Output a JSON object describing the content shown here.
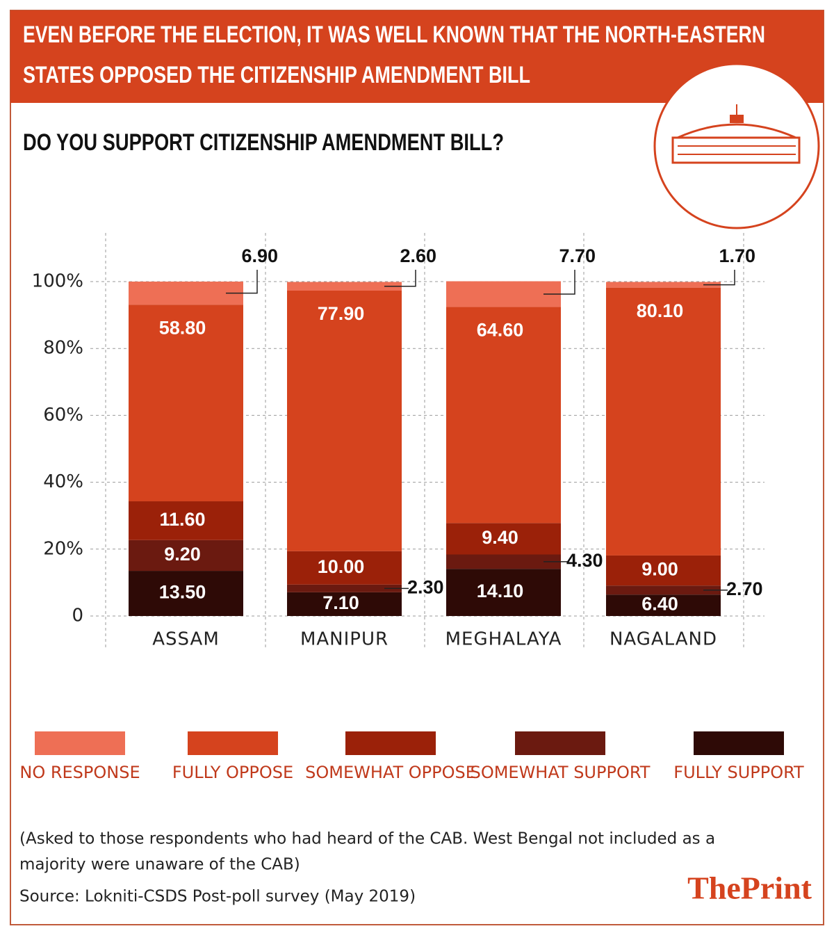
{
  "chart_data": {
    "type": "stacked-bar",
    "title": [
      "EVEN BEFORE THE ELECTION, IT WAS WELL KNOWN THAT THE NORTH-EASTERN",
      "STATES OPPOSED THE CITIZENSHIP AMENDMENT BILL"
    ],
    "subtitle": "DO YOU SUPPORT CITIZENSHIP AMENDMENT BILL?",
    "categories": [
      "ASSAM",
      "MANIPUR",
      "MEGHALAYA",
      "NAGALAND"
    ],
    "series": [
      {
        "name": "NO RESPONSE",
        "color": "#ee6f55",
        "values": [
          6.9,
          2.6,
          7.7,
          1.7
        ],
        "value_labels": [
          "6.90",
          "2.60",
          "7.70",
          "1.70"
        ]
      },
      {
        "name": "FULLY OPPOSE",
        "color": "#d5431e",
        "values": [
          58.8,
          77.9,
          64.6,
          80.1
        ],
        "value_labels": [
          "58.80",
          "77.90",
          "64.60",
          "80.10"
        ]
      },
      {
        "name": "SOMEWHAT OPPOSE",
        "color": "#9b2109",
        "values": [
          11.6,
          10,
          9.4,
          9
        ],
        "value_labels": [
          "11.60",
          "10.00",
          "9.40",
          "9.00"
        ]
      },
      {
        "name": "SOMEWHAT SUPPORT",
        "color": "#6b1a10",
        "values": [
          9.2,
          2.3,
          4.3,
          2.7
        ],
        "value_labels": [
          "9.20",
          "2.30",
          "4.30",
          "2.70"
        ]
      },
      {
        "name": "FULLY SUPPORT",
        "color": "#2e0a06",
        "values": [
          13.5,
          7.1,
          14.1,
          6.4
        ],
        "value_labels": [
          "13.50",
          "7.10",
          "14.10",
          "6.40"
        ]
      }
    ],
    "ylim": [
      0,
      100
    ],
    "yticks": [
      0,
      {
        "value": 20,
        "label": "20%"
      },
      {
        "value": 40,
        "label": "40%"
      },
      {
        "value": 60,
        "label": "60%"
      },
      {
        "value": 80,
        "label": "80%"
      },
      {
        "value": 100,
        "label": "100%"
      }
    ],
    "grid": true,
    "notes": [
      "(Asked to those respondents who had heard of the CAB. West Bengal not included as a",
      "majority were unaware of the CAB)"
    ],
    "source": "Source: Lokniti-CSDS Post-poll survey (May 2019)",
    "brand": "ThePrint"
  }
}
